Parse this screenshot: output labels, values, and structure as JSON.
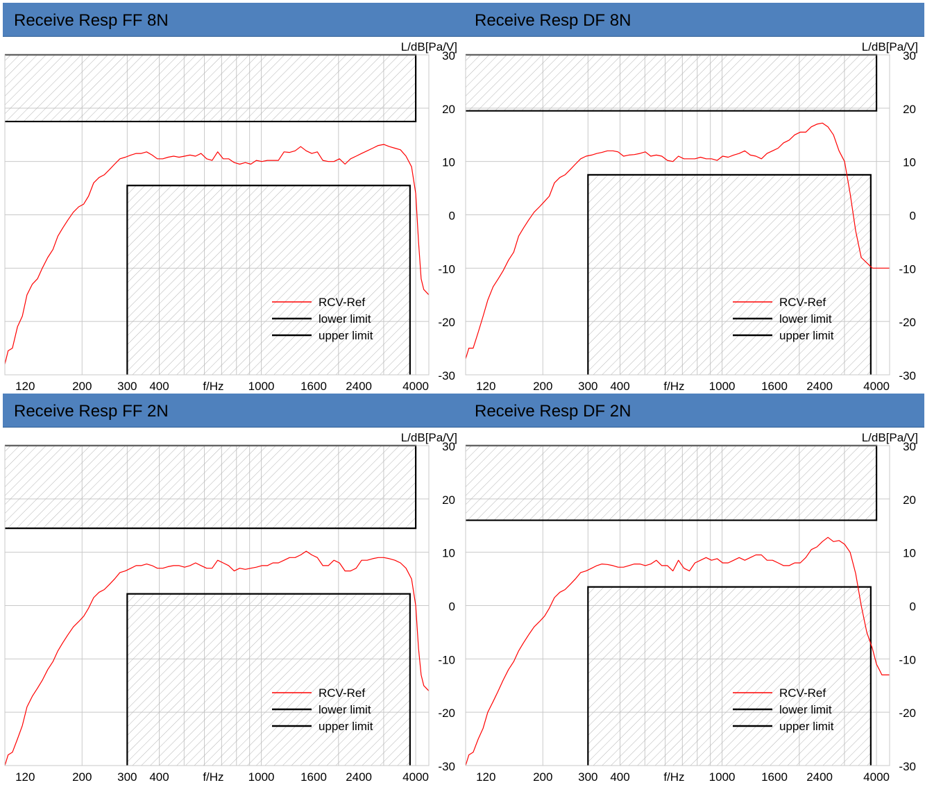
{
  "colors": {
    "header_bg": "#4f81bd",
    "trace": "#ff0000",
    "limit": "#000000",
    "grid": "#c8c8c8",
    "hatch": "#b4b4b4"
  },
  "chart_data": [
    {
      "type": "line",
      "title": "Receive Resp FF 8N",
      "xlabel": "f/Hz",
      "ylabel": "L/dB[Pa/V]",
      "xscale": "log",
      "xlim": [
        100,
        4500
      ],
      "ylim": [
        -30,
        30
      ],
      "xticks": [
        120,
        200,
        300,
        400,
        1000,
        1600,
        2400,
        4000
      ],
      "yticks": [
        30,
        20,
        10,
        0,
        -10,
        -20,
        -30
      ],
      "grid": true,
      "legend": "bottom-right",
      "legend_entries": [
        "RCV-Ref",
        "lower limit",
        "upper limit"
      ],
      "series": [
        {
          "name": "RCV-Ref",
          "x": [
            100,
            103,
            107,
            112,
            117,
            122,
            128,
            134,
            140,
            147,
            154,
            161,
            168,
            176,
            185,
            194,
            203,
            212,
            222,
            233,
            244,
            256,
            268,
            281,
            295,
            310,
            325,
            340,
            357,
            375,
            393,
            413,
            433,
            455,
            478,
            502,
            527,
            554,
            582,
            612,
            643,
            676,
            710,
            746,
            784,
            824,
            866,
            910,
            956,
            1005,
            1056,
            1110,
            1166,
            1226,
            1289,
            1355,
            1424,
            1497,
            1573,
            1653,
            1737,
            1826,
            1919,
            2017,
            2120,
            2228,
            2342,
            2461,
            2587,
            2719,
            2858,
            3004,
            3157,
            3318,
            3488,
            3666,
            3853,
            4000,
            4100,
            4200,
            4300,
            4500
          ],
          "values": [
            -28,
            -25.5,
            -25,
            -21,
            -19,
            -15,
            -13,
            -12,
            -10,
            -8,
            -6.5,
            -4,
            -2.5,
            -1,
            0.5,
            1.5,
            2,
            3.5,
            6,
            7,
            7.5,
            8.5,
            9.5,
            10.5,
            10.8,
            11.2,
            11.5,
            11.5,
            11.8,
            11.2,
            10.5,
            10.5,
            10.8,
            11,
            10.8,
            11,
            11.2,
            11,
            11.5,
            10.5,
            10.2,
            11.8,
            10.5,
            10.5,
            9.8,
            9.5,
            9.8,
            9.5,
            10.2,
            10,
            10.2,
            10.2,
            10.2,
            11.8,
            11.7,
            12,
            12.8,
            12,
            11.5,
            11.8,
            10.2,
            10,
            10,
            10.5,
            9.5,
            10.5,
            11,
            11.5,
            12,
            12.5,
            13,
            13.2,
            12.8,
            12.5,
            12.2,
            11,
            9,
            4,
            -5,
            -12,
            -14,
            -15
          ]
        }
      ],
      "upper_limit": {
        "start_hz": 100,
        "end_hz": 4000,
        "level_db": 17.5
      },
      "lower_limit": {
        "start_hz": 300,
        "end_hz": 3800,
        "level_db": 5.5
      }
    },
    {
      "type": "line",
      "title": "Receive Resp DF 8N",
      "xlabel": "f/Hz",
      "ylabel": "L/dB[Pa/V]",
      "xscale": "log",
      "xlim": [
        100,
        4500
      ],
      "ylim": [
        -30,
        30
      ],
      "xticks": [
        120,
        200,
        300,
        400,
        1000,
        1600,
        2400,
        4000
      ],
      "yticks": [
        30,
        20,
        10,
        0,
        -10,
        -20,
        -30
      ],
      "grid": true,
      "legend": "bottom-right",
      "legend_entries": [
        "RCV-Ref",
        "lower limit",
        "upper limit"
      ],
      "series": [
        {
          "name": "RCV-Ref",
          "x": [
            100,
            103,
            107,
            112,
            117,
            122,
            128,
            134,
            140,
            147,
            154,
            161,
            168,
            176,
            185,
            194,
            203,
            212,
            222,
            233,
            244,
            256,
            268,
            281,
            295,
            310,
            325,
            340,
            357,
            375,
            393,
            413,
            433,
            455,
            478,
            502,
            527,
            554,
            582,
            612,
            643,
            676,
            710,
            746,
            784,
            824,
            866,
            910,
            956,
            1005,
            1056,
            1110,
            1166,
            1226,
            1289,
            1355,
            1424,
            1497,
            1573,
            1653,
            1737,
            1826,
            1919,
            2017,
            2120,
            2228,
            2342,
            2461,
            2587,
            2719,
            2858,
            3004,
            3157,
            3318,
            3488,
            3666,
            3853,
            4000,
            4100,
            4200,
            4300,
            4500
          ],
          "values": [
            -27,
            -25,
            -25,
            -22,
            -19,
            -16,
            -13.5,
            -12,
            -10.5,
            -8.5,
            -7,
            -4,
            -2.5,
            -1,
            0.5,
            1.5,
            2.5,
            3.5,
            6,
            7,
            7.5,
            8.5,
            9.5,
            10.5,
            11,
            11.2,
            11.5,
            11.7,
            12,
            12,
            11.8,
            11,
            11.2,
            11.3,
            11.5,
            11.8,
            11,
            11.2,
            11,
            10.2,
            10,
            11,
            10.5,
            10.5,
            10.5,
            10.8,
            10.5,
            10.5,
            10.2,
            11,
            10.8,
            11.2,
            11.5,
            12,
            11.2,
            11,
            10.5,
            11.5,
            12,
            12.5,
            13.5,
            14,
            15,
            15.5,
            15.5,
            16.5,
            17,
            17.2,
            16.5,
            15,
            12,
            10,
            4,
            -3,
            -8,
            -9,
            -10,
            -10,
            -10,
            -10,
            -10,
            -10
          ]
        }
      ],
      "upper_limit": {
        "start_hz": 100,
        "end_hz": 4000,
        "level_db": 19.5
      },
      "lower_limit": {
        "start_hz": 300,
        "end_hz": 3800,
        "level_db": 7.5
      }
    },
    {
      "type": "line",
      "title": "Receive Resp FF 2N",
      "xlabel": "f/Hz",
      "ylabel": "L/dB[Pa/V]",
      "xscale": "log",
      "xlim": [
        100,
        4500
      ],
      "ylim": [
        -30,
        30
      ],
      "xticks": [
        120,
        200,
        300,
        400,
        1000,
        1600,
        2400,
        4000
      ],
      "yticks": [
        30,
        20,
        10,
        0,
        -10,
        -20,
        -30
      ],
      "grid": true,
      "legend": "bottom-right",
      "legend_entries": [
        "RCV-Ref",
        "lower limit",
        "upper limit"
      ],
      "series": [
        {
          "name": "RCV-Ref",
          "x": [
            100,
            103,
            107,
            112,
            117,
            122,
            128,
            134,
            140,
            147,
            154,
            161,
            168,
            176,
            185,
            194,
            203,
            212,
            222,
            233,
            244,
            256,
            268,
            281,
            295,
            310,
            325,
            340,
            357,
            375,
            393,
            413,
            433,
            455,
            478,
            502,
            527,
            554,
            582,
            612,
            643,
            676,
            710,
            746,
            784,
            824,
            866,
            910,
            956,
            1005,
            1056,
            1110,
            1166,
            1226,
            1289,
            1355,
            1424,
            1497,
            1573,
            1653,
            1737,
            1826,
            1919,
            2017,
            2120,
            2228,
            2342,
            2461,
            2587,
            2719,
            2858,
            3004,
            3157,
            3318,
            3488,
            3666,
            3853,
            4000,
            4100,
            4200,
            4300,
            4500
          ],
          "values": [
            -30,
            -28,
            -27.5,
            -25,
            -22.5,
            -19,
            -17,
            -15.5,
            -14,
            -12,
            -10.5,
            -8.5,
            -7,
            -5.5,
            -4,
            -3,
            -2,
            -0.5,
            1.5,
            2.5,
            3,
            4,
            5,
            6.2,
            6.5,
            7,
            7.5,
            7.5,
            7.8,
            7.5,
            7,
            7,
            7.3,
            7.5,
            7.5,
            7.2,
            7.5,
            8,
            7.5,
            7,
            7,
            8.5,
            8,
            7.5,
            6.5,
            7,
            6.8,
            7,
            7.2,
            7.5,
            7.5,
            8,
            8,
            8.5,
            9,
            9,
            9.5,
            10.2,
            9.5,
            9,
            7.5,
            7.5,
            8.5,
            8,
            6.5,
            6.5,
            7,
            8.5,
            8.5,
            8.8,
            9,
            9,
            8.8,
            8.5,
            8,
            7,
            5,
            0,
            -8,
            -13,
            -15,
            -16
          ]
        }
      ],
      "upper_limit": {
        "start_hz": 100,
        "end_hz": 4000,
        "level_db": 14.5
      },
      "lower_limit": {
        "start_hz": 300,
        "end_hz": 3800,
        "level_db": 2.2
      }
    },
    {
      "type": "line",
      "title": "Receive Resp DF 2N",
      "xlabel": "f/Hz",
      "ylabel": "L/dB[Pa/V]",
      "xscale": "log",
      "xlim": [
        100,
        4500
      ],
      "ylim": [
        -30,
        30
      ],
      "xticks": [
        120,
        200,
        300,
        400,
        1000,
        1600,
        2400,
        4000
      ],
      "yticks": [
        30,
        20,
        10,
        0,
        -10,
        -20,
        -30
      ],
      "grid": true,
      "legend": "bottom-right",
      "legend_entries": [
        "RCV-Ref",
        "lower limit",
        "upper limit"
      ],
      "series": [
        {
          "name": "RCV-Ref",
          "x": [
            100,
            103,
            107,
            112,
            117,
            122,
            128,
            134,
            140,
            147,
            154,
            161,
            168,
            176,
            185,
            194,
            203,
            212,
            222,
            233,
            244,
            256,
            268,
            281,
            295,
            310,
            325,
            340,
            357,
            375,
            393,
            413,
            433,
            455,
            478,
            502,
            527,
            554,
            582,
            612,
            643,
            676,
            710,
            746,
            784,
            824,
            866,
            910,
            956,
            1005,
            1056,
            1110,
            1166,
            1226,
            1289,
            1355,
            1424,
            1497,
            1573,
            1653,
            1737,
            1826,
            1919,
            2017,
            2120,
            2228,
            2342,
            2461,
            2587,
            2719,
            2858,
            3004,
            3157,
            3318,
            3488,
            3666,
            3853,
            4000,
            4100,
            4200,
            4300,
            4500
          ],
          "values": [
            -30,
            -28,
            -27.5,
            -25,
            -23,
            -20,
            -18,
            -16,
            -14,
            -12,
            -10.5,
            -8.5,
            -7,
            -5.5,
            -4,
            -3,
            -2,
            -0.5,
            1.5,
            2.5,
            3,
            4,
            5,
            6.2,
            6.5,
            7,
            7.5,
            7.8,
            7.7,
            7.5,
            7.2,
            7.2,
            7.5,
            7.8,
            7.8,
            7.5,
            7.8,
            8.5,
            7.5,
            7.5,
            6.5,
            8.5,
            7,
            6.5,
            8,
            8.5,
            9,
            8.5,
            8.8,
            8,
            8,
            8.5,
            9,
            8.5,
            9,
            9.5,
            9.5,
            8.5,
            8.5,
            8,
            7.5,
            7.5,
            8,
            8,
            9,
            10.5,
            11,
            12,
            12.8,
            12,
            12.2,
            11.5,
            10,
            6,
            0,
            -5,
            -8,
            -11,
            -12,
            -13,
            -13,
            -13
          ]
        }
      ],
      "upper_limit": {
        "start_hz": 100,
        "end_hz": 4000,
        "level_db": 16
      },
      "lower_limit": {
        "start_hz": 300,
        "end_hz": 3800,
        "level_db": 3.5
      }
    }
  ]
}
